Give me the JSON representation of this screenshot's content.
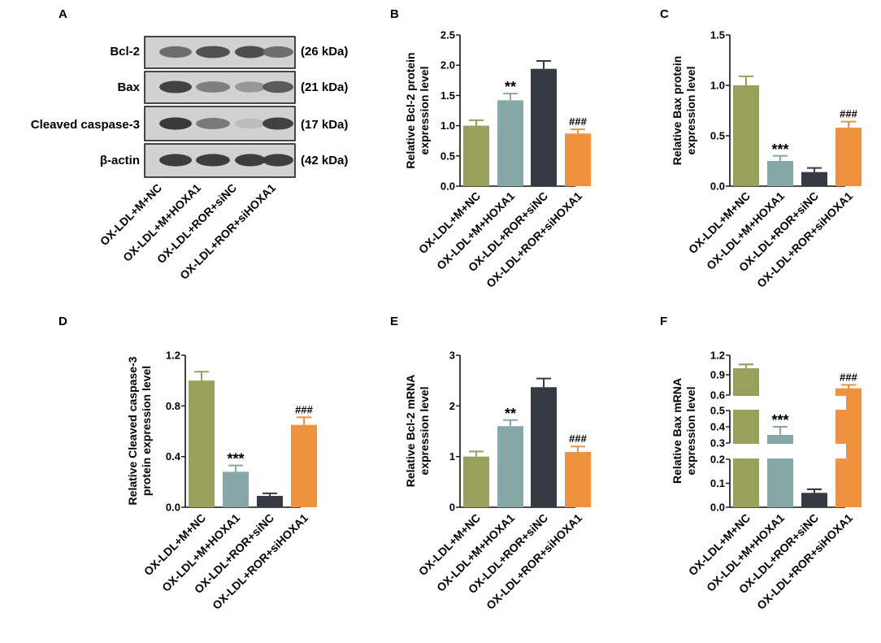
{
  "panels": [
    "A",
    "B",
    "C",
    "D",
    "E",
    "F"
  ],
  "categories": [
    "OX-LDL+M+NC",
    "OX-LDL+M+HOXA1",
    "OX-LDL+ROR+siNC",
    "OX-LDL+ROR+siHOXA1"
  ],
  "colors": [
    "#98a05c",
    "#86a8a8",
    "#363a45",
    "#ef9240"
  ],
  "blot": {
    "rows": [
      {
        "protein": "Bcl-2",
        "size": "(26 kDa)"
      },
      {
        "protein": "Bax",
        "size": "(21 kDa)"
      },
      {
        "protein": "Cleaved caspase-3",
        "size": "(17 kDa)"
      },
      {
        "protein": "β-actin",
        "size": "(42 kDa)"
      }
    ],
    "band_intensity": [
      [
        0.55,
        0.7,
        0.72,
        0.55
      ],
      [
        0.78,
        0.45,
        0.32,
        0.65
      ],
      [
        0.82,
        0.48,
        0.12,
        0.78
      ],
      [
        0.8,
        0.8,
        0.8,
        0.8
      ]
    ]
  },
  "chart_data": [
    {
      "panel": "B",
      "type": "bar",
      "ylabel": [
        "Relative Bcl-2 protein",
        "expression level"
      ],
      "categories": [
        "OX-LDL+M+NC",
        "OX-LDL+M+HOXA1",
        "OX-LDL+ROR+siNC",
        "OX-LDL+ROR+siHOXA1"
      ],
      "values": [
        1.0,
        1.42,
        1.94,
        0.87
      ],
      "errors": [
        0.09,
        0.11,
        0.13,
        0.07
      ],
      "ylim": [
        0,
        2.5
      ],
      "yticks": [
        "0.0",
        "0.5",
        "1.0",
        "1.5",
        "2.0",
        "2.5"
      ],
      "annotations": [
        "",
        "**",
        "",
        "###"
      ]
    },
    {
      "panel": "C",
      "type": "bar",
      "ylabel": [
        "Relative Bax protein",
        "expression level"
      ],
      "categories": [
        "OX-LDL+M+NC",
        "OX-LDL+M+HOXA1",
        "OX-LDL+ROR+siNC",
        "OX-LDL+ROR+siHOXA1"
      ],
      "values": [
        1.0,
        0.25,
        0.14,
        0.58
      ],
      "errors": [
        0.09,
        0.05,
        0.04,
        0.06
      ],
      "ylim": [
        0,
        1.5
      ],
      "yticks": [
        "0.0",
        "0.5",
        "1.0",
        "1.5"
      ],
      "annotations": [
        "",
        "***",
        "",
        "###"
      ]
    },
    {
      "panel": "D",
      "type": "bar",
      "ylabel": [
        "Relative Cleaved caspase-3",
        "protein expression level"
      ],
      "categories": [
        "OX-LDL+M+NC",
        "OX-LDL+M+HOXA1",
        "OX-LDL+ROR+siNC",
        "OX-LDL+ROR+siHOXA1"
      ],
      "values": [
        1.0,
        0.28,
        0.09,
        0.65
      ],
      "errors": [
        0.07,
        0.05,
        0.02,
        0.06
      ],
      "ylim": [
        0,
        1.2
      ],
      "yticks": [
        "0.0",
        "0.4",
        "0.8",
        "1.2"
      ],
      "annotations": [
        "",
        "***",
        "",
        "###"
      ]
    },
    {
      "panel": "E",
      "type": "bar",
      "ylabel": [
        "Relative Bcl-2 mRNA",
        "expression level"
      ],
      "categories": [
        "OX-LDL+M+NC",
        "OX-LDL+M+HOXA1",
        "OX-LDL+ROR+siNC",
        "OX-LDL+ROR+siHOXA1"
      ],
      "values": [
        1.0,
        1.6,
        2.37,
        1.09
      ],
      "errors": [
        0.1,
        0.12,
        0.17,
        0.11
      ],
      "ylim": [
        0,
        3
      ],
      "yticks": [
        "0",
        "1",
        "2",
        "3"
      ],
      "annotations": [
        "",
        "**",
        "",
        "###"
      ]
    },
    {
      "panel": "F",
      "type": "bar",
      "ylabel": [
        "Relative Bax mRNA",
        "expression level"
      ],
      "categories": [
        "OX-LDL+M+NC",
        "OX-LDL+M+HOXA1",
        "OX-LDL+ROR+siNC",
        "OX-LDL+ROR+siHOXA1"
      ],
      "values": [
        1.0,
        0.35,
        0.06,
        0.7
      ],
      "errors": [
        0.06,
        0.05,
        0.015,
        0.05
      ],
      "ylim": [
        0,
        1.2
      ],
      "yticks": [
        "0.0",
        "0.1",
        "0.2",
        "0.3",
        "0.4",
        "0.5",
        "0.6",
        "0.9",
        "1.2"
      ],
      "axis_breaks": [
        [
          0.2,
          0.3
        ],
        [
          0.5,
          0.6
        ]
      ],
      "annotations": [
        "",
        "***",
        "",
        "###"
      ]
    }
  ]
}
